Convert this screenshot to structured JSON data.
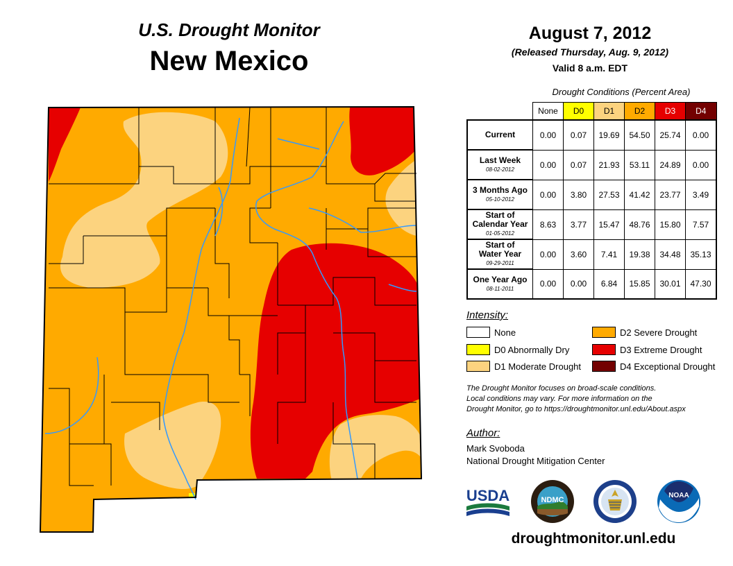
{
  "header": {
    "subtitle": "U.S. Drought Monitor",
    "state": "New Mexico",
    "date": "August 7, 2012",
    "released": "(Released Thursday, Aug. 9, 2012)",
    "valid": "Valid 8 a.m. EDT"
  },
  "table": {
    "caption": "Drought Conditions (Percent Area)",
    "columns": [
      "None",
      "D0",
      "D1",
      "D2",
      "D3",
      "D4"
    ],
    "rows": [
      {
        "label": "Current",
        "label2": "",
        "date": "",
        "values": [
          "0.00",
          "0.07",
          "19.69",
          "54.50",
          "25.74",
          "0.00"
        ]
      },
      {
        "label": "Last Week",
        "label2": "",
        "date": "08-02-2012",
        "values": [
          "0.00",
          "0.07",
          "21.93",
          "53.11",
          "24.89",
          "0.00"
        ]
      },
      {
        "label": "3 Months Ago",
        "label2": "",
        "date": "05-10-2012",
        "values": [
          "0.00",
          "3.80",
          "27.53",
          "41.42",
          "23.77",
          "3.49"
        ]
      },
      {
        "label": "Start of",
        "label2": "Calendar Year",
        "date": "01-05-2012",
        "values": [
          "8.63",
          "3.77",
          "15.47",
          "48.76",
          "15.80",
          "7.57"
        ]
      },
      {
        "label": "Start of",
        "label2": "Water Year",
        "date": "09-29-2011",
        "values": [
          "0.00",
          "3.60",
          "7.41",
          "19.38",
          "34.48",
          "35.13"
        ]
      },
      {
        "label": "One Year Ago",
        "label2": "",
        "date": "08-11-2011",
        "values": [
          "0.00",
          "0.00",
          "6.84",
          "15.85",
          "30.01",
          "47.30"
        ]
      }
    ]
  },
  "legend": {
    "title": "Intensity:",
    "items": [
      {
        "label": "None",
        "color": "#ffffff"
      },
      {
        "label": "D0 Abnormally Dry",
        "color": "#ffff00"
      },
      {
        "label": "D1 Moderate Drought",
        "color": "#fcd37f"
      },
      {
        "label": "D2 Severe Drought",
        "color": "#ffaa00"
      },
      {
        "label": "D3 Extreme Drought",
        "color": "#e60000"
      },
      {
        "label": "D4 Exceptional Drought",
        "color": "#730000"
      }
    ]
  },
  "note": {
    "line1": "The Drought Monitor focuses on broad-scale conditions.",
    "line2": "Local conditions may vary. For more information on the",
    "line3": "Drought Monitor, go to https://droughtmonitor.unl.edu/About.aspx"
  },
  "author": {
    "title": "Author:",
    "name": "Mark Svoboda",
    "org": "National Drought Mitigation Center"
  },
  "logos": {
    "usda": "USDA",
    "ndmc": "NDMC",
    "noaa": "NOAA"
  },
  "website": "droughtmonitor.unl.edu",
  "colors": {
    "none": "#ffffff",
    "d0": "#ffff00",
    "d1": "#fcd37f",
    "d2": "#ffaa00",
    "d3": "#e60000",
    "d4": "#730000",
    "river": "#3399ff"
  }
}
